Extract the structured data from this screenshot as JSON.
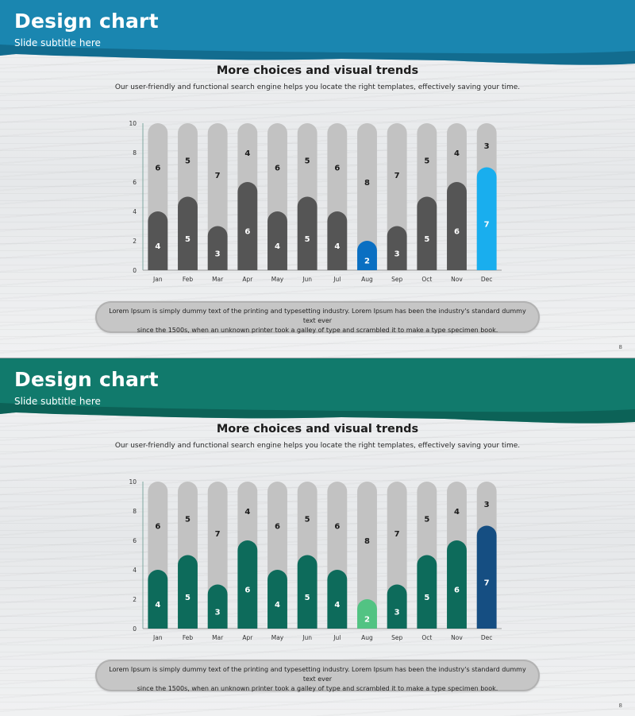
{
  "slides": [
    {
      "title": "Design chart",
      "subtitle": "Slide subtitle here",
      "heading": "More choices and visual trends",
      "description": "Our user-friendly and functional search engine helps you locate the right templates, effectively saving your time.",
      "body_line1": "Lorem Ipsum  is simply dummy  text of the printing and typesetting industry. Lorem Ipsum  has been the industry's standard dummy  text ever",
      "body_line2": "since the 1500s, when  an unknown  printer took a galley of type and scrambled it to make a type specimen book.",
      "page_number": "8",
      "colors": {
        "banner": "#1a86b0",
        "banner_dark": "#0d5875",
        "bar": "#555555",
        "highlight_low": "#0a6fc2",
        "highlight_high": "#19aeee",
        "track": "#c2c2c2"
      },
      "chart_data": {
        "type": "bar",
        "stacked": true,
        "categories": [
          "Jan",
          "Feb",
          "Mar",
          "Apr",
          "May",
          "Jun",
          "Jul",
          "Aug",
          "Sep",
          "Oct",
          "Nov",
          "Dec"
        ],
        "series": [
          {
            "values": [
              4,
              5,
              3,
              6,
              4,
              5,
              4,
              2,
              3,
              5,
              6,
              7
            ]
          },
          {
            "values": [
              6,
              5,
              7,
              4,
              6,
              5,
              6,
              8,
              7,
              5,
              4,
              3
            ]
          }
        ],
        "ylim": [
          0,
          10
        ],
        "yticks": [
          0,
          2,
          4,
          6,
          8,
          10
        ],
        "highlight": {
          "low": "Aug",
          "high": "Dec"
        }
      }
    },
    {
      "title": "Design chart",
      "subtitle": "Slide subtitle here",
      "heading": "More choices and visual trends",
      "description": "Our user-friendly and functional search engine helps you locate the right templates, effectively saving your time.",
      "body_line1": "Lorem Ipsum  is simply dummy  text of the printing and typesetting industry. Lorem Ipsum  has been the industry's standard dummy  text ever",
      "body_line2": "since the 1500s, when  an unknown  printer took a galley of type and scrambled it to make a type specimen book.",
      "page_number": "8",
      "colors": {
        "banner": "#117a6c",
        "banner_dark": "#0a4f47",
        "bar": "#0d6b5b",
        "highlight_low": "#52c383",
        "highlight_high": "#154e82",
        "track": "#c2c2c2"
      },
      "chart_data": {
        "type": "bar",
        "stacked": true,
        "categories": [
          "Jan",
          "Feb",
          "Mar",
          "Apr",
          "May",
          "Jun",
          "Jul",
          "Aug",
          "Sep",
          "Oct",
          "Nov",
          "Dec"
        ],
        "series": [
          {
            "values": [
              4,
              5,
              3,
              6,
              4,
              5,
              4,
              2,
              3,
              5,
              6,
              7
            ]
          },
          {
            "values": [
              6,
              5,
              7,
              4,
              6,
              5,
              6,
              8,
              7,
              5,
              4,
              3
            ]
          }
        ],
        "ylim": [
          0,
          10
        ],
        "yticks": [
          0,
          2,
          4,
          6,
          8,
          10
        ],
        "highlight": {
          "low": "Aug",
          "high": "Dec"
        }
      }
    }
  ]
}
